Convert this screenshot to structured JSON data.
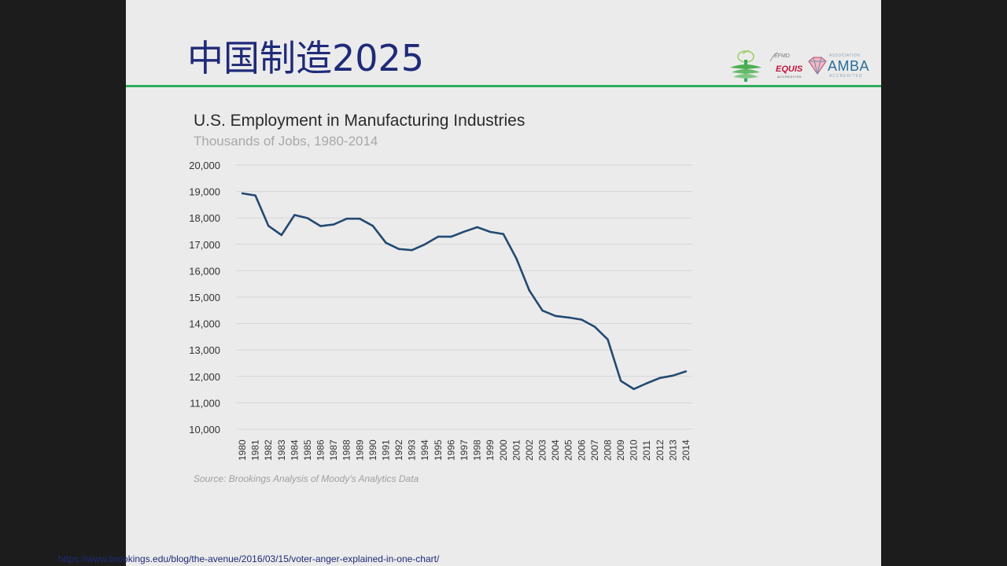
{
  "slide": {
    "title": "中国制造2025",
    "accent_color": "#2fae5a",
    "title_color": "#1f2a78",
    "logos": {
      "equis_top": "EFMD",
      "equis_main": "EQUIS",
      "equis_sub": "ACCREDITED",
      "amba_assoc": "ASSOCIATION",
      "amba_main": "AMBA",
      "amba_acc": "ACCREDITED"
    },
    "source": "Source: Brookings Analysis of Moody's Analytics Data",
    "url": "https://www.brookings.edu/blog/the-avenue/2016/03/15/voter-anger-explained-in-one-chart/"
  },
  "chart_data": {
    "type": "line",
    "title": "U.S. Employment in Manufacturing Industries",
    "subtitle": "Thousands of Jobs, 1980-2014",
    "xlabel": "",
    "ylabel": "",
    "ylim": [
      10000,
      20000
    ],
    "yticks": [
      10000,
      11000,
      12000,
      13000,
      14000,
      15000,
      16000,
      17000,
      18000,
      19000,
      20000
    ],
    "ytick_labels": [
      "10,000",
      "11,000",
      "12,000",
      "13,000",
      "14,000",
      "15,000",
      "16,000",
      "17,000",
      "18,000",
      "19,000",
      "20,000"
    ],
    "grid": true,
    "line_color": "#234a72",
    "categories": [
      "1980",
      "1981",
      "1982",
      "1983",
      "1984",
      "1985",
      "1986",
      "1987",
      "1988",
      "1989",
      "1990",
      "1991",
      "1992",
      "1993",
      "1994",
      "1995",
      "1996",
      "1997",
      "1998",
      "1999",
      "2000",
      "2001",
      "2002",
      "2003",
      "2004",
      "2005",
      "2006",
      "2007",
      "2008",
      "2009",
      "2010",
      "2011",
      "2012",
      "2013",
      "2014"
    ],
    "series": [
      {
        "values": [
          18930,
          18850,
          17700,
          17350,
          18110,
          17990,
          17690,
          17750,
          17970,
          17970,
          17700,
          17060,
          16820,
          16780,
          17000,
          17290,
          17290,
          17480,
          17650,
          17470,
          17390,
          16460,
          15250,
          14490,
          14290,
          14230,
          14150,
          13880,
          13400,
          11830,
          11520,
          11740,
          11940,
          12030,
          12190
        ]
      }
    ]
  }
}
